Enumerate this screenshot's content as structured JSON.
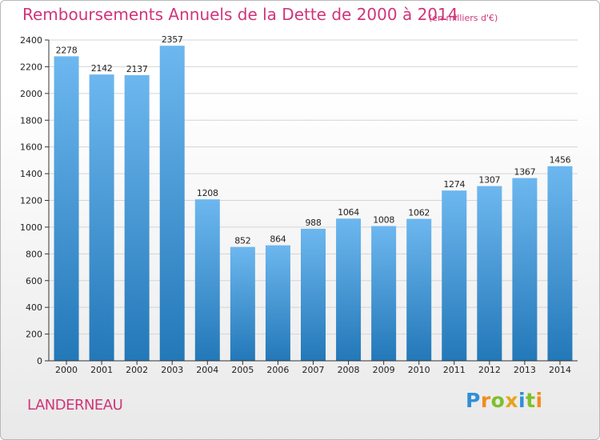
{
  "page": {
    "title": "Remboursements Annuels de la Dette de 2000 à 2014",
    "subtitle": "(en milliers d'€)",
    "place": "LANDERNEAU",
    "logo": "Proxiti"
  },
  "colors": {
    "title": "#d0357a",
    "bar_top": "#6db7ef",
    "bar_bottom": "#2378b8",
    "grid": "#d4d4d4",
    "axis": "#333333"
  },
  "logo_letters": [
    {
      "ch": "P",
      "color": "#2f8fd8"
    },
    {
      "ch": "r",
      "color": "#f28c1e"
    },
    {
      "ch": "o",
      "color": "#7fbf2a"
    },
    {
      "ch": "x",
      "color": "#e8a31c"
    },
    {
      "ch": "i",
      "color": "#2f8fd8"
    },
    {
      "ch": "t",
      "color": "#7fbf2a"
    },
    {
      "ch": "i",
      "color": "#f28c1e"
    }
  ],
  "chart_data": {
    "type": "bar",
    "title": "Remboursements Annuels de la Dette de 2000 à 2014",
    "subtitle": "(en milliers d'€)",
    "xlabel": "",
    "ylabel": "",
    "categories": [
      "2000",
      "2001",
      "2002",
      "2003",
      "2004",
      "2005",
      "2006",
      "2007",
      "2008",
      "2009",
      "2010",
      "2011",
      "2012",
      "2013",
      "2014"
    ],
    "values": [
      2278,
      2142,
      2137,
      2357,
      1208,
      852,
      864,
      988,
      1064,
      1008,
      1062,
      1274,
      1307,
      1367,
      1456
    ],
    "ylim": [
      0,
      2400
    ],
    "yticks": [
      0,
      200,
      400,
      600,
      800,
      1000,
      1200,
      1400,
      1600,
      1800,
      2000,
      2200,
      2400
    ],
    "grid": true,
    "legend": "none"
  }
}
